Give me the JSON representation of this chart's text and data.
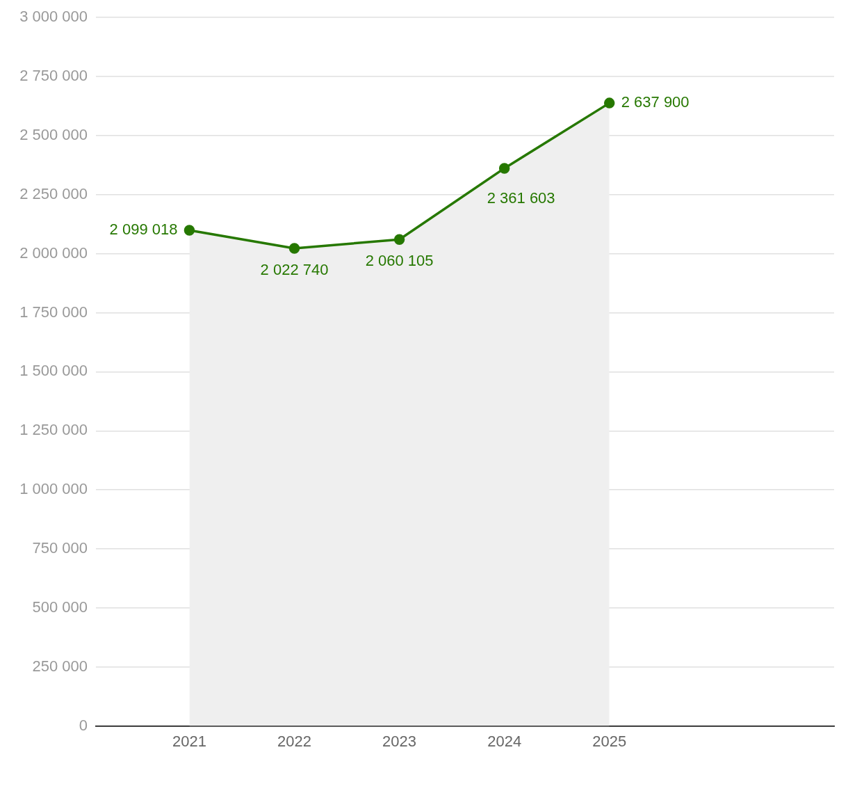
{
  "chart_data": {
    "type": "area",
    "x": [
      2021,
      2022,
      2023,
      2024,
      2025
    ],
    "xlim": [
      2020.11,
      2027.14
    ],
    "xticks": [
      2021,
      2022,
      2023,
      2024,
      2025
    ],
    "ylim": [
      0,
      3000000
    ],
    "yticks": [
      {
        "value": 0,
        "label": "0"
      },
      {
        "value": 250000,
        "label": "250 000"
      },
      {
        "value": 500000,
        "label": "500 000"
      },
      {
        "value": 750000,
        "label": "750 000"
      },
      {
        "value": 1000000,
        "label": "1 000 000"
      },
      {
        "value": 1250000,
        "label": "1 250 000"
      },
      {
        "value": 1500000,
        "label": "1 500 000"
      },
      {
        "value": 1750000,
        "label": "1 750 000"
      },
      {
        "value": 2000000,
        "label": "2 000 000"
      },
      {
        "value": 2250000,
        "label": "2 250 000"
      },
      {
        "value": 2500000,
        "label": "2 500 000"
      },
      {
        "value": 2750000,
        "label": "2 750 000"
      },
      {
        "value": 3000000,
        "label": "3 000 000"
      }
    ],
    "grid": "y",
    "legend": false,
    "marker": "circle",
    "line_style": "solid",
    "series": [
      {
        "color": "#267800",
        "values": [
          2099018,
          2022740,
          2060105,
          2361603,
          2637900
        ],
        "value_labels": [
          "2 099 018",
          "2 022 740",
          "2 060 105",
          "2 361 603",
          "2 637 900"
        ]
      }
    ]
  }
}
